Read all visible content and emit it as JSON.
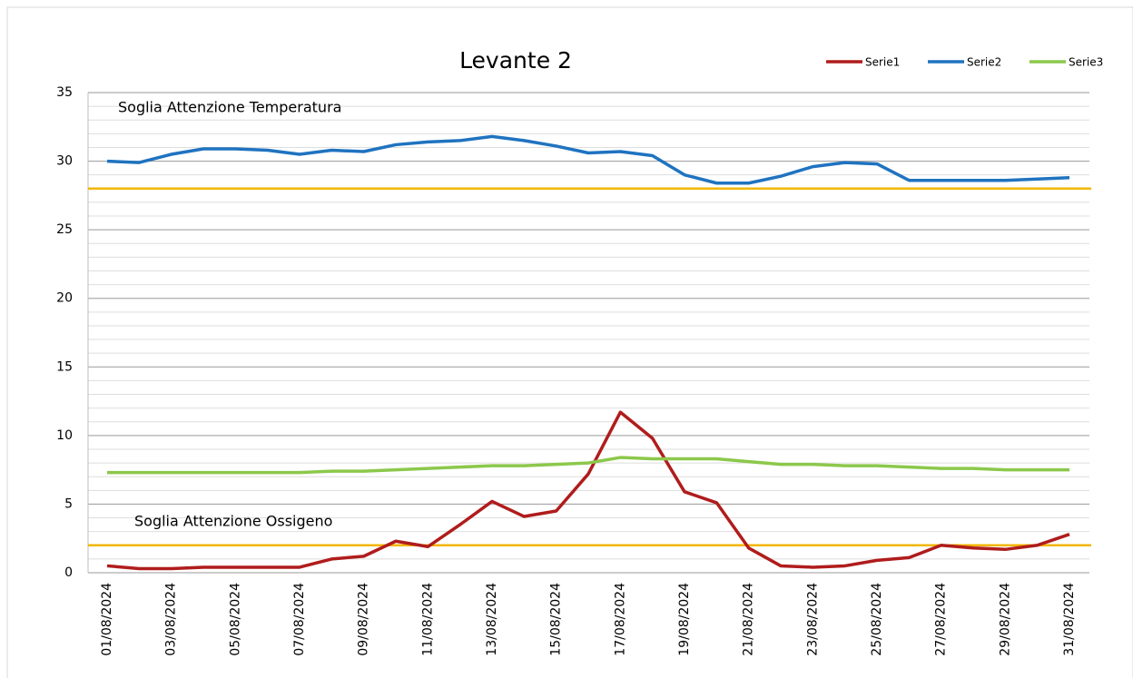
{
  "chart_data": {
    "type": "line",
    "title": "Levante 2",
    "categories": [
      "01/08/2024",
      null,
      "03/08/2024",
      null,
      "05/08/2024",
      null,
      "07/08/2024",
      null,
      "09/08/2024",
      null,
      "11/08/2024",
      null,
      "13/08/2024",
      null,
      "15/08/2024",
      null,
      "17/08/2024",
      null,
      "19/08/2024",
      null,
      "21/08/2024",
      null,
      "23/08/2024",
      null,
      "25/08/2024",
      null,
      "27/08/2024",
      null,
      "29/08/2024",
      null,
      "31/08/2024"
    ],
    "series": [
      {
        "name": "Serie1",
        "color": "#b01c1c",
        "values": [
          0.5,
          0.3,
          0.3,
          0.4,
          0.4,
          0.4,
          0.4,
          1.0,
          1.2,
          2.3,
          1.9,
          3.5,
          5.2,
          4.1,
          4.5,
          7.2,
          11.7,
          9.8,
          5.9,
          5.1,
          1.8,
          0.5,
          0.4,
          0.5,
          0.9,
          1.1,
          2.0,
          1.8,
          1.7,
          2.0,
          2.8
        ]
      },
      {
        "name": "Serie2",
        "color": "#1f73c0",
        "values": [
          30.0,
          29.9,
          30.5,
          30.9,
          30.9,
          30.8,
          30.5,
          30.8,
          30.7,
          31.2,
          31.4,
          31.5,
          31.8,
          31.5,
          31.1,
          30.6,
          30.7,
          30.4,
          29.0,
          28.4,
          28.4,
          28.9,
          29.6,
          29.9,
          29.8,
          28.6,
          28.6,
          28.6,
          28.6,
          28.7,
          28.8
        ]
      },
      {
        "name": "Serie3",
        "color": "#8cc84b",
        "values": [
          7.3,
          7.3,
          7.3,
          7.3,
          7.3,
          7.3,
          7.3,
          7.4,
          7.4,
          7.5,
          7.6,
          7.7,
          7.8,
          7.8,
          7.9,
          8.0,
          8.4,
          8.3,
          8.3,
          8.3,
          8.1,
          7.9,
          7.9,
          7.8,
          7.8,
          7.7,
          7.6,
          7.6,
          7.5,
          7.5,
          7.5
        ]
      }
    ],
    "thresholds": [
      {
        "label": "Soglia Attenzione Temperatura",
        "value": 28,
        "color": "#f2b600",
        "label_color": "#f0a860"
      },
      {
        "label": "Soglia Attenzione Ossigeno",
        "value": 2,
        "color": "#f2b600",
        "label_color": "#f0a860"
      }
    ],
    "ylim": [
      0,
      35
    ],
    "yticks": [
      0,
      5,
      10,
      15,
      20,
      25,
      30,
      35
    ],
    "minor_yticks": [
      1,
      2,
      3,
      4,
      6,
      7,
      8,
      9,
      11,
      12,
      13,
      14,
      16,
      17,
      18,
      19,
      21,
      22,
      23,
      24,
      26,
      27,
      28,
      29,
      31,
      32,
      33,
      34
    ],
    "grid": true,
    "legend": "top-right"
  }
}
